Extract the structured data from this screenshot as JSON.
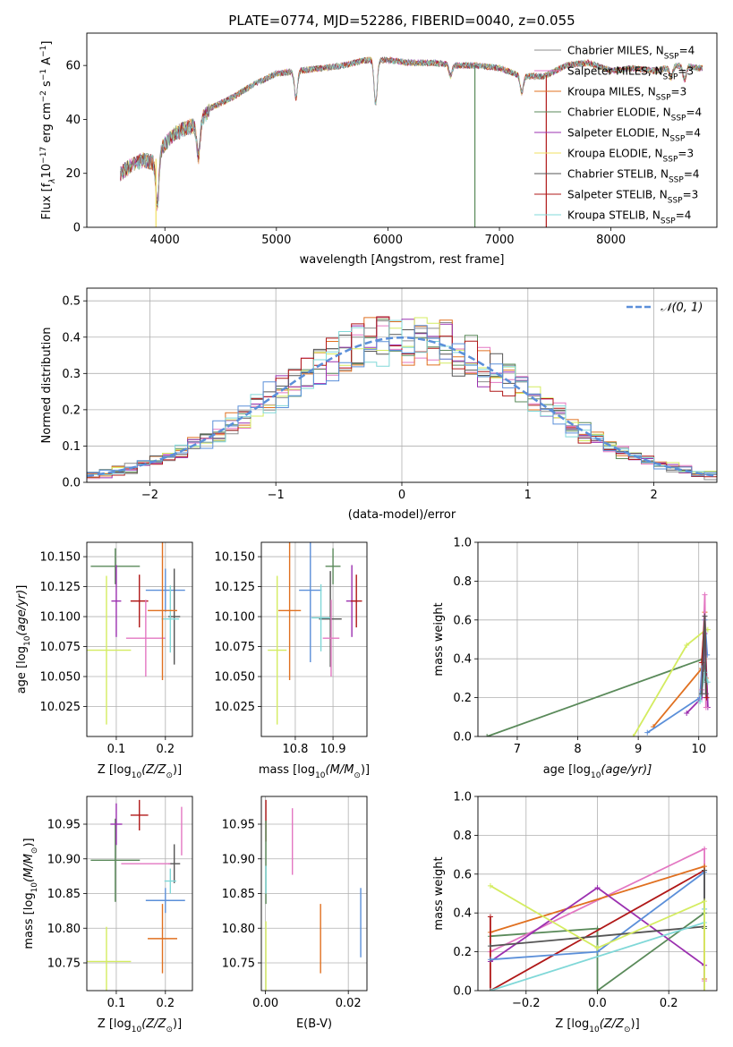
{
  "figure": {
    "title": "PLATE=0774, MJD=52286, FIBERID=0040, z=0.055",
    "colors": [
      "#8c8c8c",
      "#e377c2",
      "#e07020",
      "#5a8a5a",
      "#9b30b0",
      "#f0e060",
      "#555555",
      "#b01818",
      "#80d8d8"
    ],
    "model_colors": {
      "Chabrier MILES": "#8c8c8c",
      "Salpeter MILES": "#e377c2",
      "Kroupa MILES": "#e07020",
      "Chabrier ELODIE": "#5a8a5a",
      "Salpeter ELODIE": "#9b30b0",
      "Kroupa ELODIE": "#f0e060",
      "Chabrier STELIB": "#555555",
      "Salpeter STELIB": "#b01818",
      "Kroupa STELIB": "#80d8d8"
    }
  },
  "chart_data": [
    {
      "id": "spectrum",
      "type": "line",
      "title": "PLATE=0774, MJD=52286, FIBERID=0040, z=0.055",
      "xlabel": "wavelength [Angstrom, rest frame]",
      "ylabel_main": "Flux [f",
      "ylabel_sub": "λ",
      "ylabel_rest": "10",
      "ylabel_exp1": "−17",
      "ylabel_units": " erg cm",
      "ylabel_exp2": "−2",
      "ylabel_s": " s",
      "ylabel_exp3": "−1",
      "ylabel_A": " A",
      "ylabel_exp4": "−1",
      "ylabel_end": "]",
      "xlim": [
        3300,
        8950
      ],
      "ylim": [
        0,
        72
      ],
      "xticks": [
        "4000",
        "5000",
        "6000",
        "7000",
        "8000"
      ],
      "xtick_values": [
        4000,
        5000,
        6000,
        7000,
        8000
      ],
      "yticks": [
        "0",
        "20",
        "40",
        "60"
      ],
      "ytick_values": [
        0,
        20,
        40,
        60
      ],
      "legend_position": "upper right",
      "legend": [
        {
          "name": "Chabrier MILES",
          "nssp": "4"
        },
        {
          "name": "Salpeter MILES",
          "nssp": "3"
        },
        {
          "name": "Kroupa MILES",
          "nssp": "3"
        },
        {
          "name": "Chabrier ELODIE",
          "nssp": "4"
        },
        {
          "name": "Salpeter ELODIE",
          "nssp": "4"
        },
        {
          "name": "Kroupa ELODIE",
          "nssp": "3"
        },
        {
          "name": "Chabrier STELIB",
          "nssp": "4"
        },
        {
          "name": "Salpeter STELIB",
          "nssp": "3"
        },
        {
          "name": "Kroupa STELIB",
          "nssp": "4"
        }
      ],
      "legend_nssp_label": "N",
      "legend_nssp_sub": "SSP",
      "continuum_x": [
        3600,
        3700,
        3800,
        3900,
        4000,
        4100,
        4200,
        4300,
        4400,
        4600,
        4800,
        5000,
        5200,
        5400,
        5600,
        5800,
        6000,
        6200,
        6400,
        6600,
        6800,
        7000,
        7200,
        7400,
        7600,
        7800,
        8000,
        8200,
        8400,
        8600,
        8800
      ],
      "continuum_y": [
        20,
        23,
        25,
        24,
        31,
        35,
        37,
        38,
        44,
        48,
        53,
        57,
        58,
        59,
        60,
        62,
        62,
        61,
        61,
        60,
        60,
        59,
        56,
        56,
        60,
        61,
        58,
        59,
        58,
        60,
        59
      ],
      "absorption_lines": [
        {
          "x": 3933,
          "depth": 18
        },
        {
          "x": 4300,
          "depth": 12
        },
        {
          "x": 5175,
          "depth": 10
        },
        {
          "x": 5890,
          "depth": 16
        },
        {
          "x": 6563,
          "depth": 4
        },
        {
          "x": 7200,
          "depth": 6
        },
        {
          "x": 8540,
          "depth": 4
        },
        {
          "x": 8660,
          "depth": 5
        }
      ],
      "dropouts": [
        {
          "x": 3920,
          "color": "#f0e060"
        },
        {
          "x": 6780,
          "color": "#5a8a5a"
        },
        {
          "x": 7420,
          "color": "#b01818"
        }
      ]
    },
    {
      "id": "residuals",
      "type": "step",
      "xlabel": "(data-model)/error",
      "ylabel": "Normed distribution",
      "xlim": [
        -2.5,
        2.5
      ],
      "ylim": [
        0,
        0.535
      ],
      "xticks": [
        "−2",
        "−1",
        "0",
        "1",
        "2"
      ],
      "xtick_values": [
        -2,
        -1,
        0,
        1,
        2
      ],
      "yticks": [
        "0.0",
        "0.1",
        "0.2",
        "0.3",
        "0.4",
        "0.5"
      ],
      "ytick_values": [
        0,
        0.1,
        0.2,
        0.3,
        0.4,
        0.5
      ],
      "grid": true,
      "legend_label": "𝒩(0, 1)",
      "legend_position": "upper right",
      "bin_width": 0.1,
      "x_start": -2.5,
      "gaussian": {
        "mean": 0,
        "sigma": 1,
        "color": "#5b8fd9"
      }
    },
    {
      "id": "age_vs_Z",
      "type": "errorbar",
      "xlabel_pre": "Z [log",
      "xlabel_sub": "10",
      "xlabel_post": "(Z/Z",
      "xlabel_sun": "⊙",
      "xlabel_end": ")]",
      "ylabel": "age  [log₁₀(age/yr)]",
      "xlim": [
        0.04,
        0.255
      ],
      "ylim": [
        10.0,
        10.162
      ],
      "xticks": [
        "0.1",
        "0.2"
      ],
      "xtick_values": [
        0.1,
        0.2
      ],
      "yticks": [
        "10.025",
        "10.050",
        "10.075",
        "10.100",
        "10.125",
        "10.150"
      ],
      "ytick_values": [
        10.025,
        10.05,
        10.075,
        10.1,
        10.125,
        10.15
      ],
      "grid": true,
      "points": [
        {
          "x": 0.098,
          "y": 10.142,
          "xerr": 0.05,
          "yerr": 0.015,
          "color": "#5a8a5a"
        },
        {
          "x": 0.1,
          "y": 10.113,
          "xerr": 0.01,
          "yerr": 0.03,
          "color": "#9b30b0"
        },
        {
          "x": 0.147,
          "y": 10.113,
          "xerr": 0.018,
          "yerr": 0.022,
          "color": "#b01818"
        },
        {
          "x": 0.2,
          "y": 10.122,
          "xerr": 0.04,
          "yerr": 0.018,
          "color": "#5b8fd9"
        },
        {
          "x": 0.218,
          "y": 10.1,
          "xerr": 0.012,
          "yerr": 0.04,
          "color": "#555555"
        },
        {
          "x": 0.21,
          "y": 10.098,
          "xerr": 0.018,
          "yerr": 0.028,
          "color": "#80d8d8"
        },
        {
          "x": 0.16,
          "y": 10.082,
          "xerr": 0.04,
          "yerr": 0.032,
          "color": "#e377c2"
        },
        {
          "x": 0.194,
          "y": 10.105,
          "xerr": 0.03,
          "yerr": 0.058,
          "color": "#e07020"
        },
        {
          "x": 0.08,
          "y": 10.072,
          "xerr": 0.05,
          "yerr": 0.062,
          "color": "#d4ec60"
        }
      ]
    },
    {
      "id": "age_vs_mass",
      "type": "errorbar",
      "xlabel_pre": "mass [log",
      "xlabel_sub": "10",
      "xlabel_post": "(M/M",
      "xlabel_sun": "⊙",
      "xlabel_end": ")]",
      "xlim": [
        10.71,
        10.99
      ],
      "ylim": [
        10.0,
        10.162
      ],
      "xticks": [
        "10.8",
        "10.9"
      ],
      "xtick_values": [
        10.8,
        10.9
      ],
      "yticks": [
        "10.025",
        "10.050",
        "10.075",
        "10.100",
        "10.125",
        "10.150"
      ],
      "ytick_values": [
        10.025,
        10.05,
        10.075,
        10.1,
        10.125,
        10.15
      ],
      "grid": true,
      "points": [
        {
          "x": 10.9,
          "y": 10.142,
          "xerr": 0.02,
          "yerr": 0.015,
          "color": "#5a8a5a"
        },
        {
          "x": 10.95,
          "y": 10.113,
          "xerr": 0.015,
          "yerr": 0.03,
          "color": "#9b30b0"
        },
        {
          "x": 10.962,
          "y": 10.113,
          "xerr": 0.015,
          "yerr": 0.022,
          "color": "#b01818"
        },
        {
          "x": 10.84,
          "y": 10.122,
          "xerr": 0.03,
          "yerr": 0.06,
          "color": "#5b8fd9"
        },
        {
          "x": 10.893,
          "y": 10.098,
          "xerr": 0.03,
          "yerr": 0.04,
          "color": "#555555"
        },
        {
          "x": 10.868,
          "y": 10.099,
          "xerr": 0.025,
          "yerr": 0.028,
          "color": "#80d8d8"
        },
        {
          "x": 10.895,
          "y": 10.082,
          "xerr": 0.022,
          "yerr": 0.032,
          "color": "#e377c2"
        },
        {
          "x": 10.785,
          "y": 10.105,
          "xerr": 0.03,
          "yerr": 0.058,
          "color": "#e07020"
        },
        {
          "x": 10.752,
          "y": 10.072,
          "xerr": 0.025,
          "yerr": 0.062,
          "color": "#d4ec60"
        }
      ]
    },
    {
      "id": "weight_vs_age",
      "type": "line",
      "xlabel_pre": "age  [log",
      "xlabel_sub": "10",
      "xlabel_post": "(age/yr)]",
      "ylabel": "mass weight",
      "xlim": [
        6.35,
        10.3
      ],
      "ylim": [
        0,
        1.0
      ],
      "xticks": [
        "7",
        "8",
        "9",
        "10"
      ],
      "xtick_values": [
        7,
        8,
        9,
        10
      ],
      "yticks": [
        "0.0",
        "0.2",
        "0.4",
        "0.6",
        "0.8",
        "1.0"
      ],
      "ytick_values": [
        0,
        0.2,
        0.4,
        0.6,
        0.8,
        1.0
      ],
      "grid": true,
      "series": [
        {
          "color": "#5a8a5a",
          "x": [
            6.5,
            10.08,
            10.1,
            10.12
          ],
          "y": [
            0.0,
            0.4,
            0.3,
            0.28
          ]
        },
        {
          "color": "#d4ec60",
          "x": [
            8.92,
            9.8,
            10.12,
            10.15
          ],
          "y": [
            0.0,
            0.47,
            0.55,
            0.55
          ]
        },
        {
          "color": "#e07020",
          "x": [
            9.25,
            10.05,
            10.1,
            10.12
          ],
          "y": [
            0.05,
            0.35,
            0.64,
            0.3
          ]
        },
        {
          "color": "#5b8fd9",
          "x": [
            9.15,
            10.02,
            10.1,
            10.14
          ],
          "y": [
            0.02,
            0.2,
            0.6,
            0.42
          ]
        },
        {
          "color": "#9b30b0",
          "x": [
            9.8,
            10.05,
            10.1,
            10.15
          ],
          "y": [
            0.12,
            0.2,
            0.53,
            0.15
          ]
        },
        {
          "color": "#e377c2",
          "x": [
            10.05,
            10.1,
            10.12
          ],
          "y": [
            0.24,
            0.73,
            0.15
          ]
        },
        {
          "color": "#b01818",
          "x": [
            10.05,
            10.1,
            10.13
          ],
          "y": [
            0.38,
            0.62,
            0.2
          ]
        },
        {
          "color": "#80d8d8",
          "x": [
            10.02,
            10.1,
            10.15
          ],
          "y": [
            0.18,
            0.33,
            0.28
          ]
        },
        {
          "color": "#555555",
          "x": [
            10.05,
            10.1,
            10.12
          ],
          "y": [
            0.22,
            0.62,
            0.22
          ]
        }
      ]
    },
    {
      "id": "mass_vs_Z",
      "type": "errorbar",
      "xlabel_pre": "Z [log",
      "xlabel_sub": "10",
      "xlabel_post": "(Z/Z",
      "xlabel_sun": "⊙",
      "xlabel_end": ")]",
      "ylabel": "mass [log₁₀(M/M⊙)]",
      "xlim": [
        0.04,
        0.255
      ],
      "ylim": [
        10.71,
        10.99
      ],
      "xticks": [
        "0.1",
        "0.2"
      ],
      "xtick_values": [
        0.1,
        0.2
      ],
      "yticks": [
        "10.75",
        "10.80",
        "10.85",
        "10.90",
        "10.95"
      ],
      "ytick_values": [
        10.75,
        10.8,
        10.85,
        10.9,
        10.95
      ],
      "grid": true,
      "points": [
        {
          "x": 0.098,
          "y": 10.898,
          "xerr": 0.05,
          "yerr": 0.06,
          "color": "#5a8a5a"
        },
        {
          "x": 0.1,
          "y": 10.95,
          "xerr": 0.012,
          "yerr": 0.03,
          "color": "#9b30b0"
        },
        {
          "x": 0.147,
          "y": 10.963,
          "xerr": 0.018,
          "yerr": 0.022,
          "color": "#b01818"
        },
        {
          "x": 0.2,
          "y": 10.84,
          "xerr": 0.04,
          "yerr": 0.018,
          "color": "#5b8fd9"
        },
        {
          "x": 0.218,
          "y": 10.893,
          "xerr": 0.012,
          "yerr": 0.028,
          "color": "#555555"
        },
        {
          "x": 0.21,
          "y": 10.868,
          "xerr": 0.012,
          "yerr": 0.018,
          "color": "#80d8d8"
        },
        {
          "x": 0.16,
          "y": 10.893,
          "xerr": 0.05,
          "yerr": 0.0,
          "color": "#e377c2"
        },
        {
          "x": 0.194,
          "y": 10.785,
          "xerr": 0.03,
          "yerr": 0.05,
          "color": "#e07020"
        },
        {
          "x": 0.08,
          "y": 10.752,
          "xerr": 0.05,
          "yerr": 0.05,
          "color": "#d4ec60"
        },
        {
          "x": 0.233,
          "y": 10.94,
          "xerr": 0.0,
          "yerr": 0.035,
          "color": "#e377c2"
        }
      ]
    },
    {
      "id": "mass_vs_EBV",
      "type": "errorbar",
      "xlabel": "E(B-V)",
      "xlim": [
        -0.001,
        0.0245
      ],
      "ylim": [
        10.71,
        10.99
      ],
      "xticks": [
        "0.00",
        "0.02"
      ],
      "xtick_values": [
        0.0,
        0.02
      ],
      "yticks": [
        "10.75",
        "10.80",
        "10.85",
        "10.90",
        "10.95"
      ],
      "ytick_values": [
        10.75,
        10.8,
        10.85,
        10.9,
        10.95
      ],
      "grid": true,
      "points": [
        {
          "x": 0.0001,
          "y": 10.955,
          "xerr": 0.0,
          "yerr": 0.03,
          "color": "#b01818"
        },
        {
          "x": 0.0001,
          "y": 10.895,
          "xerr": 0.0,
          "yerr": 0.06,
          "color": "#5a8a5a"
        },
        {
          "x": 0.0001,
          "y": 10.87,
          "xerr": 0.0,
          "yerr": 0.02,
          "color": "#80d8d8"
        },
        {
          "x": 0.0001,
          "y": 10.76,
          "xerr": 0.0,
          "yerr": 0.05,
          "color": "#d4ec60"
        },
        {
          "x": 0.0065,
          "y": 10.925,
          "xerr": 0.0,
          "yerr": 0.048,
          "color": "#e377c2"
        },
        {
          "x": 0.0133,
          "y": 10.785,
          "xerr": 0.0,
          "yerr": 0.05,
          "color": "#e07020"
        },
        {
          "x": 0.023,
          "y": 10.808,
          "xerr": 0.0,
          "yerr": 0.05,
          "color": "#5b8fd9"
        }
      ]
    },
    {
      "id": "weight_vs_Z",
      "type": "line",
      "xlabel_pre": "Z [log",
      "xlabel_sub": "10",
      "xlabel_post": "(Z/Z",
      "xlabel_sun": "⊙",
      "xlabel_end": ")]",
      "ylabel": "mass weight",
      "xlim": [
        -0.335,
        0.335
      ],
      "ylim": [
        0,
        1.0
      ],
      "xticks": [
        "−0.2",
        "0.0",
        "0.2"
      ],
      "xtick_values": [
        -0.2,
        0.0,
        0.2
      ],
      "yticks": [
        "0.0",
        "0.2",
        "0.4",
        "0.6",
        "0.8",
        "1.0"
      ],
      "ytick_values": [
        0,
        0.2,
        0.4,
        0.6,
        0.8,
        1.0
      ],
      "grid": true,
      "series": [
        {
          "color": "#5a8a5a",
          "x": [
            -0.3,
            0.0,
            0.0,
            0.3,
            0.3
          ],
          "y": [
            0.28,
            0.32,
            0.0,
            0.4,
            0.32
          ]
        },
        {
          "color": "#e377c2",
          "x": [
            -0.3,
            0.3,
            0.3
          ],
          "y": [
            0.2,
            0.73,
            0.05
          ]
        },
        {
          "color": "#e07020",
          "x": [
            -0.3,
            0.3,
            0.3
          ],
          "y": [
            0.3,
            0.64,
            0.06
          ]
        },
        {
          "color": "#9b30b0",
          "x": [
            -0.3,
            0.0,
            0.3,
            0.3
          ],
          "y": [
            0.15,
            0.53,
            0.13,
            0.0
          ]
        },
        {
          "color": "#b01818",
          "x": [
            -0.3,
            -0.3,
            0.3
          ],
          "y": [
            0.38,
            0.0,
            0.62
          ]
        },
        {
          "color": "#5b8fd9",
          "x": [
            -0.3,
            0.0,
            0.3,
            0.3
          ],
          "y": [
            0.16,
            0.2,
            0.61,
            0.42
          ]
        },
        {
          "color": "#555555",
          "x": [
            -0.3,
            0.3,
            0.3
          ],
          "y": [
            0.23,
            0.33,
            0.62
          ]
        },
        {
          "color": "#80d8d8",
          "x": [
            -0.3,
            0.3,
            0.3
          ],
          "y": [
            0.0,
            0.35,
            0.42
          ]
        },
        {
          "color": "#d4ec60",
          "x": [
            -0.3,
            0.0,
            0.3,
            0.3
          ],
          "y": [
            0.54,
            0.22,
            0.46,
            0.0
          ]
        }
      ]
    }
  ]
}
